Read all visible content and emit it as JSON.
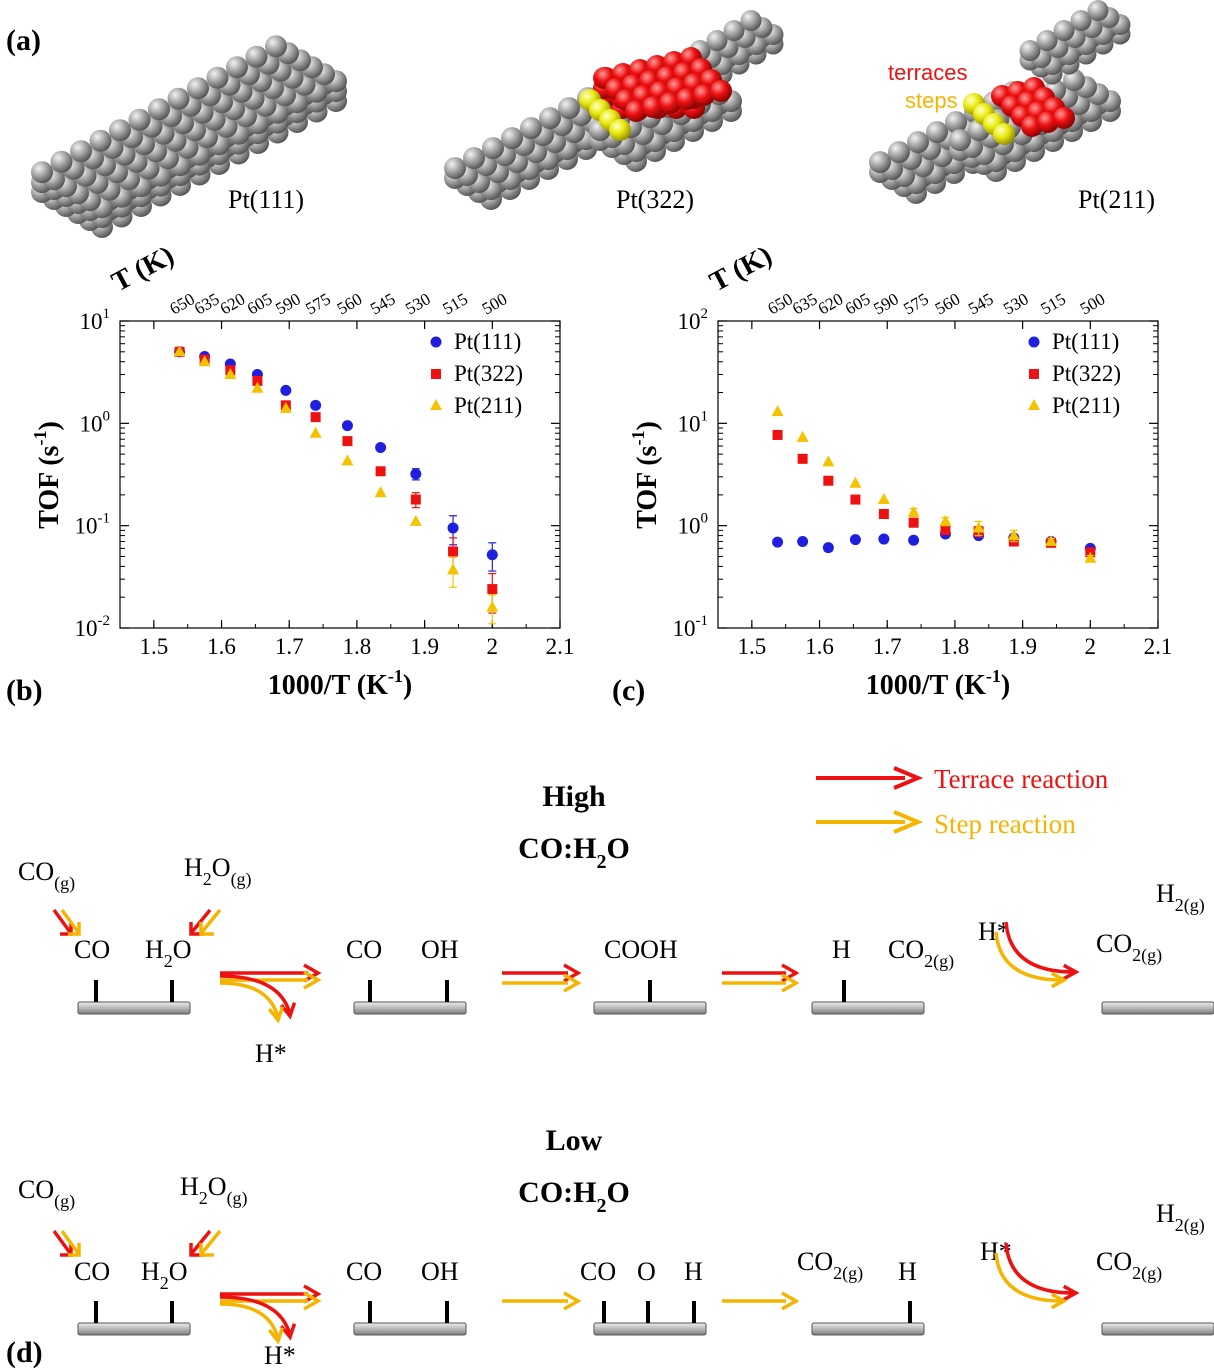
{
  "colors": {
    "pt111": "#1f1fe0",
    "pt322": "#ee1111",
    "pt211": "#f5c200",
    "terrace": "#ee1111",
    "step": "#f5b400",
    "atom": "#9a9a9a",
    "terraceAtom": "#dd1111",
    "stepAtom": "#e8e000"
  },
  "panels": {
    "a": "(a)",
    "b": "(b)",
    "c": "(c)",
    "d": "(d)"
  },
  "structures": {
    "pt111": "Pt(111)",
    "pt322": "Pt(322)",
    "pt211": "Pt(211)",
    "terraces": "terraces",
    "steps": "steps"
  },
  "chart_data": [
    {
      "type": "scatter",
      "panel": "b",
      "xlabel": "1000/T (K",
      "xlabel_sup": "-1",
      "xlabel_close": ")",
      "ylabel": "TOF (s",
      "ylabel_sup": "-1",
      "ylabel_close": ")",
      "top_axis_label": "T (K)",
      "top_ticks": [
        "650",
        "635",
        "620",
        "605",
        "590",
        "575",
        "560",
        "545",
        "530",
        "515",
        "500"
      ],
      "xlim": [
        1.45,
        2.1
      ],
      "x_ticks": [
        "1.5",
        "1.6",
        "1.7",
        "1.8",
        "1.9",
        "2",
        "2.1"
      ],
      "y_scale": "log",
      "ylim": [
        0.01,
        10
      ],
      "y_tick_base": "10",
      "y_tick_exps": [
        "-2",
        "-1",
        "0",
        "1"
      ],
      "legend_position": "top-right",
      "series": [
        {
          "name": "Pt(111)",
          "marker": "circle",
          "x": [
            1.538,
            1.575,
            1.613,
            1.653,
            1.695,
            1.739,
            1.786,
            1.835,
            1.887,
            1.942,
            2.0
          ],
          "y": [
            5.0,
            4.5,
            3.8,
            3.0,
            2.1,
            1.5,
            0.95,
            0.58,
            0.32,
            0.095,
            0.052
          ],
          "err": [
            0,
            0,
            0,
            0,
            0,
            0,
            0,
            0,
            0.04,
            0.03,
            0.016
          ]
        },
        {
          "name": "Pt(322)",
          "marker": "square",
          "x": [
            1.538,
            1.575,
            1.613,
            1.653,
            1.695,
            1.739,
            1.786,
            1.835,
            1.887,
            1.942,
            2.0
          ],
          "y": [
            5.0,
            4.2,
            3.3,
            2.6,
            1.5,
            1.15,
            0.67,
            0.34,
            0.18,
            0.056,
            0.024
          ],
          "err": [
            0,
            0,
            0,
            0,
            0,
            0,
            0,
            0.03,
            0.03,
            0.02,
            0.01
          ]
        },
        {
          "name": "Pt(211)",
          "marker": "triangle",
          "x": [
            1.538,
            1.575,
            1.613,
            1.653,
            1.695,
            1.739,
            1.786,
            1.835,
            1.887,
            1.942,
            2.0
          ],
          "y": [
            5.0,
            4.0,
            3.0,
            2.2,
            1.4,
            0.8,
            0.43,
            0.21,
            0.11,
            0.037,
            0.016
          ],
          "err": [
            0,
            0,
            0,
            0,
            0,
            0,
            0,
            0,
            0,
            0.012,
            0.005
          ]
        }
      ]
    },
    {
      "type": "scatter",
      "panel": "c",
      "xlabel": "1000/T (K",
      "xlabel_sup": "-1",
      "xlabel_close": ")",
      "ylabel": "TOF (s",
      "ylabel_sup": "-1",
      "ylabel_close": ")",
      "top_axis_label": "T (K)",
      "top_ticks": [
        "650",
        "635",
        "620",
        "605",
        "590",
        "575",
        "560",
        "545",
        "530",
        "515",
        "500"
      ],
      "xlim": [
        1.45,
        2.1
      ],
      "x_ticks": [
        "1.5",
        "1.6",
        "1.7",
        "1.8",
        "1.9",
        "2",
        "2.1"
      ],
      "y_scale": "log",
      "ylim": [
        0.1,
        100
      ],
      "y_tick_base": "10",
      "y_tick_exps": [
        "-1",
        "0",
        "1",
        "2"
      ],
      "legend_position": "top-right",
      "series": [
        {
          "name": "Pt(111)",
          "marker": "circle",
          "x": [
            1.538,
            1.575,
            1.613,
            1.653,
            1.695,
            1.739,
            1.786,
            1.835,
            1.887,
            1.942,
            2.0
          ],
          "y": [
            0.69,
            0.7,
            0.61,
            0.73,
            0.74,
            0.72,
            0.83,
            0.8,
            0.76,
            0.7,
            0.6
          ],
          "err": [
            0,
            0,
            0.05,
            0,
            0,
            0,
            0.06,
            0.05,
            0,
            0,
            0.04
          ]
        },
        {
          "name": "Pt(322)",
          "marker": "square",
          "x": [
            1.538,
            1.575,
            1.613,
            1.653,
            1.695,
            1.739,
            1.786,
            1.835,
            1.887,
            1.942,
            2.0
          ],
          "y": [
            7.7,
            4.5,
            2.75,
            1.8,
            1.3,
            1.07,
            0.92,
            0.88,
            0.7,
            0.68,
            0.55
          ],
          "err": [
            0,
            0,
            0,
            0,
            0,
            0.1,
            0.1,
            0.1,
            0,
            0,
            0.04
          ]
        },
        {
          "name": "Pt(211)",
          "marker": "triangle",
          "x": [
            1.538,
            1.575,
            1.613,
            1.653,
            1.695,
            1.739,
            1.786,
            1.835,
            1.887,
            1.942,
            2.0
          ],
          "y": [
            13.0,
            7.3,
            4.2,
            2.6,
            1.8,
            1.35,
            1.1,
            0.95,
            0.8,
            0.7,
            0.48
          ],
          "err": [
            0,
            0,
            0,
            0,
            0,
            0.12,
            0.1,
            0.15,
            0.1,
            0.05,
            0.03
          ]
        }
      ]
    }
  ],
  "mechanism": {
    "legend": {
      "terrace": "Terrace reaction",
      "step": "Step reaction"
    },
    "high": {
      "title1": "High",
      "title2a": "CO:H",
      "title2sub": "2",
      "title2b": "O",
      "gas_co": "CO",
      "gas_co_sub": "(g)",
      "gas_h2o_a": "H",
      "gas_h2o_sub1": "2",
      "gas_h2o_b": "O",
      "gas_h2o_sub2": "(g)",
      "s1_co": "CO",
      "s1_h2o_a": "H",
      "s1_h2o_sub": "2",
      "s1_h2o_b": "O",
      "s1_hstar": "H*",
      "s2_co": "CO",
      "s2_oh": "OH",
      "s3_cooh": "COOH",
      "s4_h": "H",
      "s4_co2": "CO",
      "s4_co2_sub": "2(g)",
      "s5_hstar": "H*",
      "s6_h2": "H",
      "s6_h2_sub": "2(g)",
      "s6_co2": "CO",
      "s6_co2_sub": "2(g)"
    },
    "low": {
      "title1": "Low",
      "title2a": "CO:H",
      "title2sub": "2",
      "title2b": "O",
      "gas_co": "CO",
      "gas_co_sub": "(g)",
      "gas_h2o_a": "H",
      "gas_h2o_sub1": "2",
      "gas_h2o_b": "O",
      "gas_h2o_sub2": "(g)",
      "s1_co": "CO",
      "s1_h2o_a": "H",
      "s1_h2o_sub": "2",
      "s1_h2o_b": "O",
      "s1_hstar": "H*",
      "s2_co": "CO",
      "s2_oh": "OH",
      "s3_co": "CO",
      "s3_o": "O",
      "s3_h": "H",
      "s4_co2": "CO",
      "s4_co2_sub": "2(g)",
      "s4_h": "H",
      "s5_hstar": "H*",
      "s6_h2": "H",
      "s6_h2_sub": "2(g)",
      "s6_co2": "CO",
      "s6_co2_sub": "2(g)"
    }
  }
}
